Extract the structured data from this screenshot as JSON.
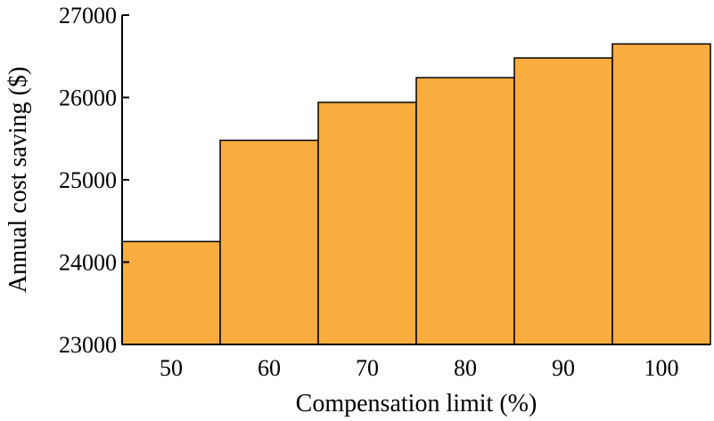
{
  "chart_data": {
    "type": "bar",
    "categories": [
      "50",
      "60",
      "70",
      "80",
      "90",
      "100"
    ],
    "values": [
      24250,
      25480,
      25940,
      26240,
      26480,
      26650
    ],
    "xlabel": "Compensation limit (%)",
    "ylabel": "Annual cost saving ($)",
    "ylim": [
      23000,
      27000
    ],
    "yticks": [
      "23000",
      "24000",
      "25000",
      "26000",
      "27000"
    ],
    "bar_color": "#F9AD3F",
    "bar_edge_color": "#000000",
    "grid": false,
    "legend": "none"
  }
}
